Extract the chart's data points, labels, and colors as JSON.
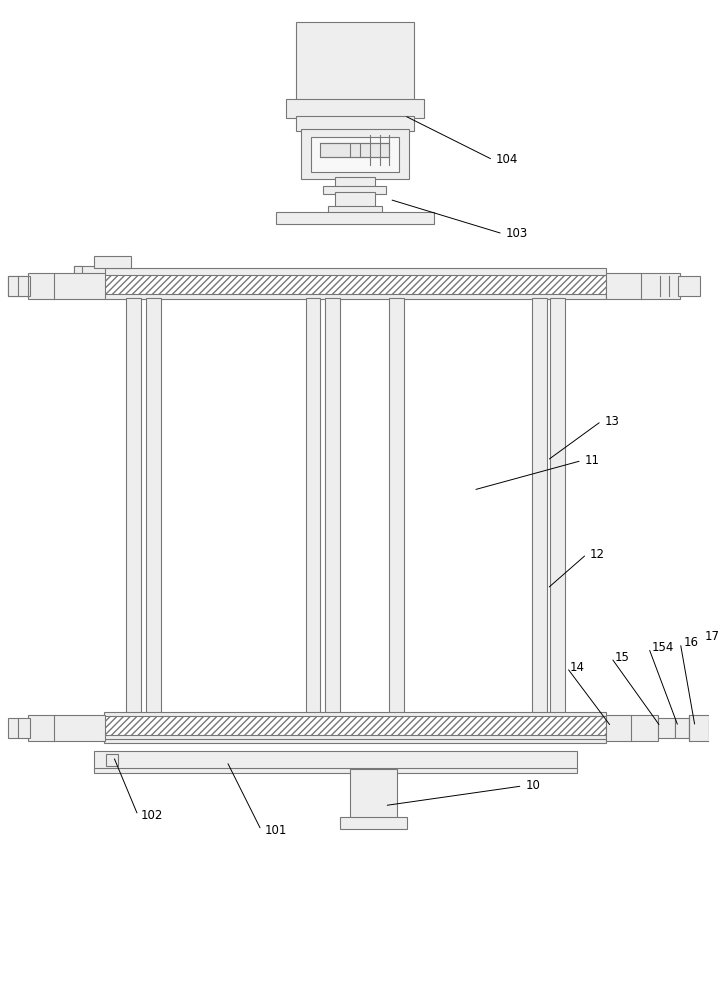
{
  "bg_color": "#ffffff",
  "lc": "#777777",
  "lw": 0.8,
  "fig_width": 7.19,
  "fig_height": 10.0
}
